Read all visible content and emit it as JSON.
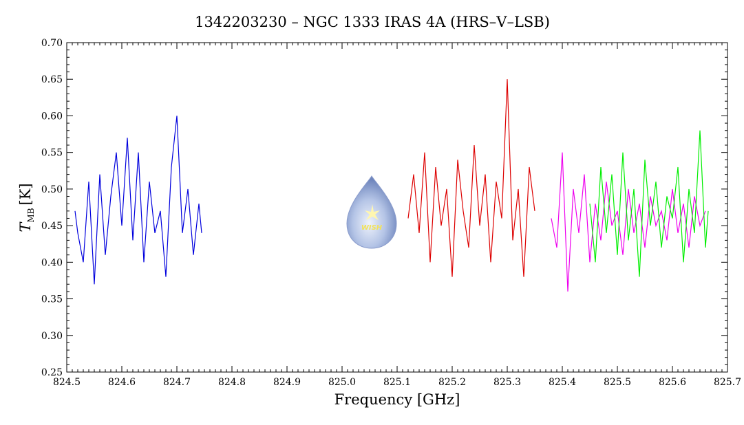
{
  "chart_data": {
    "type": "line",
    "title": "1342203230 – NGC 1333 IRAS 4A (HRS–V–LSB)",
    "xlabel": "Frequency [GHz]",
    "ylabel_main": "T",
    "ylabel_sub": "MB",
    "ylabel_unit": "[K]",
    "xlim": [
      824.5,
      825.7
    ],
    "ylim": [
      0.25,
      0.7
    ],
    "x_ticks": [
      "824.5",
      "824.6",
      "824.7",
      "824.8",
      "824.9",
      "825.0",
      "825.1",
      "825.2",
      "825.3",
      "825.4",
      "825.5",
      "825.6",
      "825.7"
    ],
    "y_ticks": [
      "0.25",
      "0.30",
      "0.35",
      "0.40",
      "0.45",
      "0.50",
      "0.55",
      "0.60",
      "0.65",
      "0.70"
    ],
    "grid": false,
    "series": [
      {
        "color": "#0000dd",
        "x": [
          824.515,
          824.52,
          824.53,
          824.54,
          824.55,
          824.56,
          824.57,
          824.58,
          824.59,
          824.6,
          824.61,
          824.62,
          824.63,
          824.64,
          824.65,
          824.66,
          824.67,
          824.68,
          824.69,
          824.7,
          824.71,
          824.72,
          824.73,
          824.74,
          824.745
        ],
        "y": [
          0.47,
          0.44,
          0.4,
          0.51,
          0.37,
          0.52,
          0.41,
          0.49,
          0.55,
          0.45,
          0.57,
          0.43,
          0.55,
          0.4,
          0.51,
          0.44,
          0.47,
          0.38,
          0.53,
          0.6,
          0.44,
          0.5,
          0.41,
          0.48,
          0.44
        ]
      },
      {
        "color": "#dd0000",
        "x": [
          825.12,
          825.13,
          825.14,
          825.15,
          825.16,
          825.17,
          825.18,
          825.19,
          825.2,
          825.21,
          825.22,
          825.23,
          825.24,
          825.25,
          825.26,
          825.27,
          825.28,
          825.29,
          825.3,
          825.31,
          825.32,
          825.33,
          825.34,
          825.35
        ],
        "y": [
          0.46,
          0.52,
          0.44,
          0.55,
          0.4,
          0.53,
          0.45,
          0.5,
          0.38,
          0.54,
          0.47,
          0.42,
          0.56,
          0.45,
          0.52,
          0.4,
          0.51,
          0.46,
          0.65,
          0.43,
          0.5,
          0.38,
          0.53,
          0.47
        ]
      },
      {
        "color": "#ee00ee",
        "x": [
          825.38,
          825.39,
          825.4,
          825.41,
          825.42,
          825.43,
          825.44,
          825.45,
          825.46,
          825.47,
          825.48,
          825.49,
          825.5,
          825.51,
          825.52,
          825.53,
          825.54,
          825.55,
          825.56,
          825.57,
          825.58,
          825.59,
          825.6,
          825.61,
          825.62,
          825.63,
          825.64,
          825.65,
          825.66
        ],
        "y": [
          0.46,
          0.42,
          0.55,
          0.36,
          0.5,
          0.44,
          0.52,
          0.4,
          0.48,
          0.43,
          0.51,
          0.45,
          0.47,
          0.41,
          0.5,
          0.44,
          0.48,
          0.42,
          0.49,
          0.45,
          0.47,
          0.43,
          0.5,
          0.44,
          0.48,
          0.42,
          0.49,
          0.45,
          0.47
        ]
      },
      {
        "color": "#00ee00",
        "x": [
          825.45,
          825.46,
          825.47,
          825.48,
          825.49,
          825.5,
          825.51,
          825.52,
          825.53,
          825.54,
          825.55,
          825.56,
          825.57,
          825.58,
          825.59,
          825.6,
          825.61,
          825.62,
          825.63,
          825.64,
          825.65,
          825.66,
          825.665
        ],
        "y": [
          0.48,
          0.4,
          0.53,
          0.44,
          0.52,
          0.41,
          0.55,
          0.43,
          0.5,
          0.38,
          0.54,
          0.45,
          0.51,
          0.42,
          0.49,
          0.46,
          0.53,
          0.4,
          0.5,
          0.44,
          0.58,
          0.42,
          0.47
        ]
      }
    ]
  },
  "logo": {
    "text": "WISH"
  }
}
